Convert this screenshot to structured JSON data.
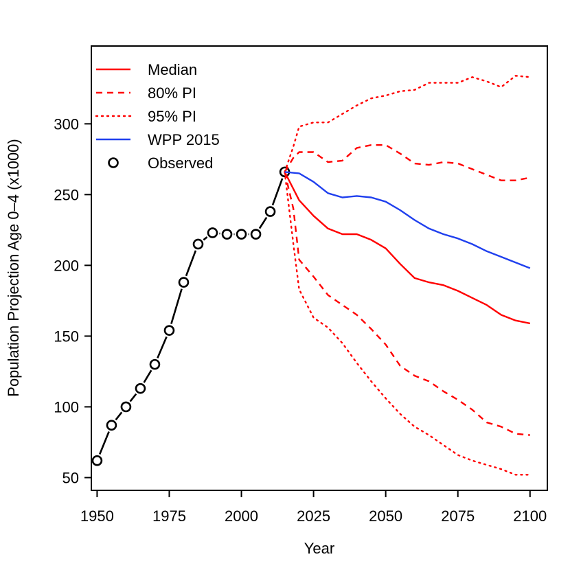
{
  "chart_data": {
    "type": "line",
    "title": "",
    "xlabel": "Year",
    "ylabel": "Population Projection Age 0–4 (x1000)",
    "xlim": [
      1948,
      2106
    ],
    "ylim": [
      41,
      355
    ],
    "xticks": [
      1950,
      1975,
      2000,
      2025,
      2050,
      2075,
      2100
    ],
    "yticks": [
      50,
      100,
      150,
      200,
      250,
      300
    ],
    "legend_position": "top-left",
    "colors": {
      "red": "#ff0000",
      "blue": "#2040ee",
      "black": "#000000"
    },
    "series": [
      {
        "name": "Observed",
        "style": "circles-with-line",
        "color": "#000000",
        "x": [
          1950,
          1955,
          1960,
          1965,
          1970,
          1975,
          1980,
          1985,
          1990,
          1995,
          2000,
          2005,
          2010,
          2015
        ],
        "y": [
          62,
          87,
          100,
          113,
          130,
          154,
          188,
          215,
          223,
          222,
          222,
          222,
          238,
          266
        ]
      },
      {
        "name": "Median",
        "style": "solid",
        "color": "#ff0000",
        "x": [
          2015,
          2020,
          2025,
          2030,
          2035,
          2040,
          2045,
          2050,
          2055,
          2060,
          2065,
          2070,
          2075,
          2080,
          2085,
          2090,
          2095,
          2100
        ],
        "y": [
          266,
          246,
          235,
          226,
          222,
          222,
          218,
          212,
          201,
          191,
          188,
          186,
          182,
          177,
          172,
          165,
          161,
          159
        ]
      },
      {
        "name": "80% PI",
        "style": "dashed",
        "color": "#ff0000",
        "x": [
          2015,
          2018,
          2020,
          2025,
          2030,
          2035,
          2040,
          2045,
          2050,
          2055,
          2060,
          2065,
          2070,
          2075,
          2080,
          2085,
          2090,
          2095,
          2100
        ],
        "y": [
          266,
          276,
          280,
          280,
          273,
          274,
          283,
          285,
          285,
          279,
          272,
          271,
          273,
          272,
          268,
          264,
          260,
          260,
          262
        ]
      },
      {
        "name": "80% PI lower",
        "style": "dashed",
        "color": "#ff0000",
        "x": [
          2015,
          2018,
          2020,
          2025,
          2030,
          2035,
          2040,
          2045,
          2050,
          2055,
          2060,
          2065,
          2070,
          2075,
          2080,
          2085,
          2090,
          2095,
          2100
        ],
        "y": [
          266,
          240,
          204,
          192,
          179,
          172,
          165,
          155,
          144,
          129,
          122,
          118,
          111,
          105,
          98,
          89,
          86,
          81,
          80
        ]
      },
      {
        "name": "95% PI",
        "style": "dotted",
        "color": "#ff0000",
        "x": [
          2015,
          2018,
          2020,
          2025,
          2030,
          2035,
          2040,
          2045,
          2050,
          2055,
          2060,
          2065,
          2070,
          2075,
          2080,
          2085,
          2090,
          2095,
          2100
        ],
        "y": [
          266,
          284,
          298,
          301,
          301,
          307,
          313,
          318,
          320,
          323,
          324,
          329,
          329,
          329,
          333,
          330,
          326,
          334,
          333
        ]
      },
      {
        "name": "95% PI lower",
        "style": "dotted",
        "color": "#ff0000",
        "x": [
          2015,
          2018,
          2020,
          2025,
          2030,
          2035,
          2040,
          2045,
          2050,
          2055,
          2060,
          2065,
          2070,
          2075,
          2080,
          2085,
          2090,
          2095,
          2100
        ],
        "y": [
          266,
          215,
          183,
          163,
          156,
          145,
          131,
          118,
          106,
          95,
          86,
          80,
          73,
          66,
          62,
          59,
          56,
          52,
          52
        ]
      },
      {
        "name": "WPP 2015",
        "style": "solid",
        "color": "#2040ee",
        "x": [
          2015,
          2020,
          2025,
          2030,
          2035,
          2040,
          2045,
          2050,
          2055,
          2060,
          2065,
          2070,
          2075,
          2080,
          2085,
          2090,
          2095,
          2100
        ],
        "y": [
          266,
          265,
          259,
          251,
          248,
          249,
          248,
          245,
          239,
          232,
          226,
          222,
          219,
          215,
          210,
          206,
          202,
          198
        ]
      }
    ],
    "legend": [
      {
        "label": "Median",
        "style": "solid",
        "color": "#ff0000"
      },
      {
        "label": "80% PI",
        "style": "dashed",
        "color": "#ff0000"
      },
      {
        "label": "95% PI",
        "style": "dotted",
        "color": "#ff0000"
      },
      {
        "label": "WPP 2015",
        "style": "solid",
        "color": "#2040ee"
      },
      {
        "label": "Observed",
        "style": "circle",
        "color": "#000000"
      }
    ]
  }
}
